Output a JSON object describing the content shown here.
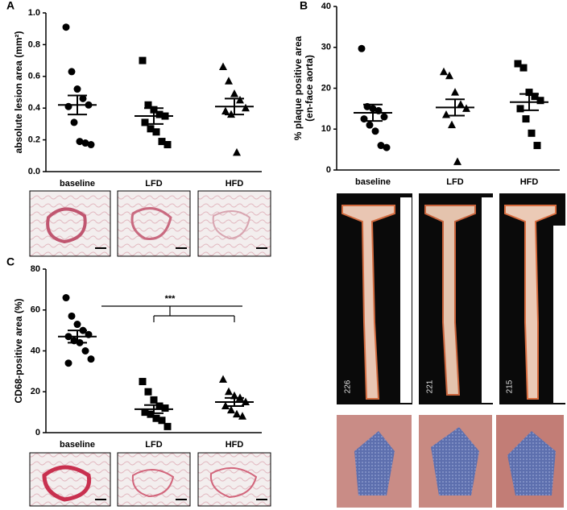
{
  "chart_data": [
    {
      "type": "dotplot",
      "panel": "A",
      "ylabel": [
        "absolute lesion area (mm²)"
      ],
      "categories": [
        "baseline",
        "LFD",
        "HFD"
      ],
      "markers": [
        "circle",
        "square",
        "triangle"
      ],
      "points": [
        [
          0.91,
          0.63,
          0.52,
          0.46,
          0.42,
          0.41,
          0.31,
          0.19,
          0.18,
          0.17
        ],
        [
          0.7,
          0.42,
          0.39,
          0.36,
          0.35,
          0.31,
          0.27,
          0.25,
          0.19,
          0.17
        ],
        [
          0.66,
          0.57,
          0.49,
          0.45,
          0.4,
          0.38,
          0.36,
          0.12
        ]
      ],
      "means": [
        0.42,
        0.35,
        0.41
      ],
      "sems": [
        0.06,
        0.05,
        0.05
      ],
      "ylim": [
        0,
        1.0
      ],
      "yticks": [
        {
          "value": 0,
          "label": "0.0"
        },
        0.2,
        0.4,
        0.6,
        0.8,
        {
          "value": 1,
          "label": "1.0"
        }
      ]
    },
    {
      "type": "dotplot",
      "panel": "B",
      "ylabel": [
        "% plaque positive area",
        "(en-face aorta)"
      ],
      "categories": [
        "baseline",
        "LFD",
        "HFD"
      ],
      "markers": [
        "circle",
        "triangle",
        "square"
      ],
      "points": [
        [
          29.7,
          15.5,
          15,
          14.5,
          13,
          12.5,
          11,
          9.5,
          6,
          5.5
        ],
        [
          24,
          23,
          19,
          16,
          15,
          13.5,
          11,
          2
        ],
        [
          26,
          25,
          19,
          18,
          17,
          15,
          12.5,
          9,
          6
        ]
      ],
      "means": [
        14,
        15.3,
        16.6
      ],
      "sems": [
        2,
        2,
        2
      ],
      "ylim": [
        0,
        40
      ],
      "yticks": [
        0,
        10,
        20,
        30,
        40
      ]
    },
    {
      "type": "dotplot",
      "panel": "C",
      "ylabel": [
        "CD68-positive area (%)"
      ],
      "categories": [
        "baseline",
        "LFD",
        "HFD"
      ],
      "markers": [
        "circle",
        "square",
        "triangle"
      ],
      "points": [
        [
          66,
          57,
          53,
          50,
          48,
          47,
          45,
          44,
          40,
          36,
          34
        ],
        [
          25,
          20,
          16,
          13,
          12,
          10,
          9,
          7,
          6,
          3
        ],
        [
          26,
          20,
          18,
          17,
          15,
          13,
          11,
          9,
          8
        ]
      ],
      "means": [
        47,
        11.5,
        15
      ],
      "sems": [
        3,
        2,
        2
      ],
      "ylim": [
        0,
        80
      ],
      "yticks": [
        0,
        20,
        40,
        60,
        80
      ],
      "annotation": "***"
    }
  ],
  "aorta_labels": [
    "226",
    "221",
    "215"
  ]
}
